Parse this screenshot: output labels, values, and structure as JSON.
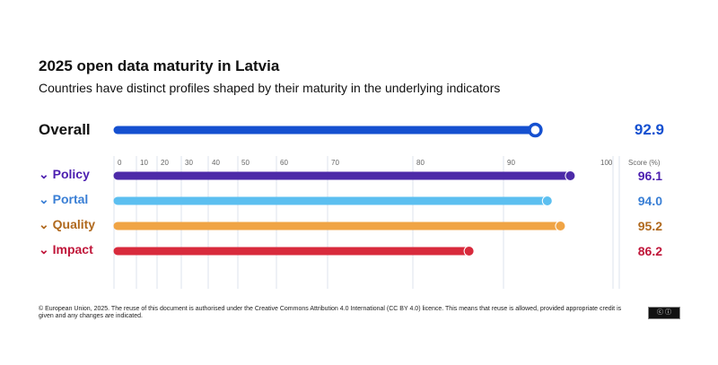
{
  "title": "2025 open data maturity in Latvia",
  "subtitle": "Countries have distinct profiles shaped by their maturity in the underlying indicators",
  "footer": "© European Union, 2025. The reuse of this document is authorised under the Creative Commons Attribution 4.0 International (CC BY 4.0) licence. This means that reuse is allowed, provided appropriate credit is given and any changes are indicated.",
  "license_badge": "cc by",
  "chart_data": {
    "type": "bar",
    "orientation": "horizontal",
    "overall": {
      "label": "Overall",
      "value": 92.9,
      "value_label": "92.9",
      "color": "#1550d0"
    },
    "categories": [
      "Policy",
      "Portal",
      "Quality",
      "Impact"
    ],
    "values": [
      96.1,
      94.0,
      95.2,
      86.2
    ],
    "value_labels": [
      "96.1",
      "94.0",
      "95.2",
      "86.2"
    ],
    "colors": [
      "#4c2aa8",
      "#5cbff0",
      "#f0a445",
      "#d82a3c"
    ],
    "text_colors": [
      "#4c1fb0",
      "#3a7fd5",
      "#b0691e",
      "#c0163a"
    ],
    "x_ticks": [
      0,
      10,
      20,
      30,
      40,
      50,
      60,
      70,
      80,
      90,
      100
    ],
    "x_tick_labels": [
      "0",
      "10",
      "20",
      "30",
      "40",
      "50",
      "60",
      "70",
      "80",
      "90",
      "100"
    ],
    "xlim": [
      0,
      100
    ],
    "value_header": "Score (%)",
    "grid": true
  }
}
